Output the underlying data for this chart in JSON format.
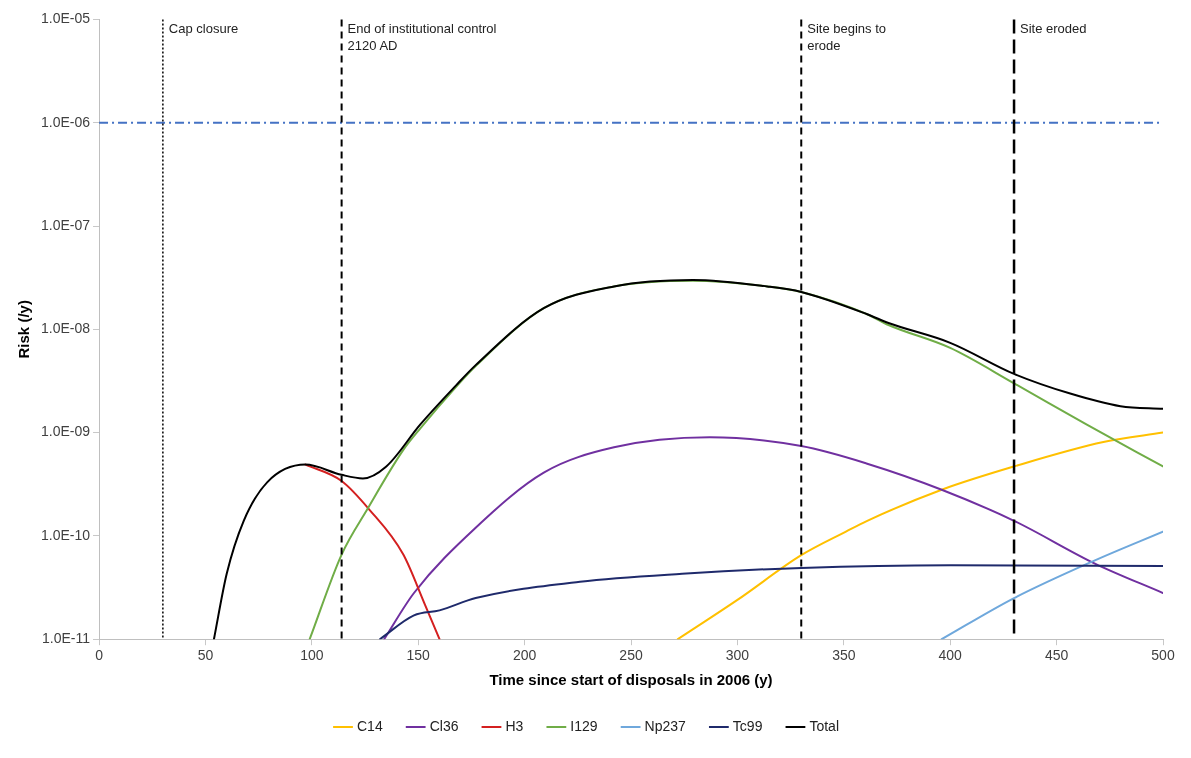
{
  "chart_data": {
    "type": "line",
    "xlabel": "Time since start of disposals in 2006 (y)",
    "ylabel": "Risk (/y)",
    "xlim": [
      0,
      500
    ],
    "xticks": [
      0,
      50,
      100,
      150,
      200,
      250,
      300,
      350,
      400,
      450,
      500
    ],
    "ylim": [
      1e-11,
      1e-05
    ],
    "log": "y",
    "yticks": [
      {
        "value": 1e-11,
        "label": "1.0E-11"
      },
      {
        "value": 1e-10,
        "label": "1.0E-10"
      },
      {
        "value": 1e-09,
        "label": "1.0E-09"
      },
      {
        "value": 1e-08,
        "label": "1.0E-08"
      },
      {
        "value": 1e-07,
        "label": "1.0E-07"
      },
      {
        "value": 1e-06,
        "label": "1.0E-06"
      },
      {
        "value": 1e-05,
        "label": "1.0E-05"
      }
    ],
    "grid": false,
    "legend": "bottom",
    "marker": "none",
    "line_style": "solid",
    "series": [
      {
        "name": "C14",
        "color": "#ffc000",
        "x": [
          272,
          300,
          330,
          351,
          361,
          396,
          430,
          472,
          500
        ],
        "values": [
          1e-11,
          2.4e-11,
          6.5e-11,
          1.1e-10,
          1.4e-10,
          2.8e-10,
          4.7e-10,
          8.1e-10,
          1e-09
        ]
      },
      {
        "name": "Cl36",
        "color": "#7030a0",
        "x": [
          134,
          148,
          177,
          209,
          242,
          287,
          330,
          361,
          396,
          430,
          468,
          500
        ],
        "values": [
          1e-11,
          2.8e-11,
          1.2e-10,
          4.1e-10,
          7.2e-10,
          9e-10,
          7.4e-10,
          5e-10,
          2.8e-10,
          1.4e-10,
          5.4e-11,
          2.8e-11
        ]
      },
      {
        "name": "H3",
        "color": "#d42020",
        "x": [
          97,
          114,
          127,
          143,
          153,
          160
        ],
        "values": [
          4.9e-10,
          3.4e-10,
          1.8e-10,
          6.6e-11,
          2.2e-11,
          1e-11
        ]
      },
      {
        "name": "I129",
        "color": "#70ad47",
        "x": [
          99,
          114,
          126,
          143,
          151,
          168,
          177,
          209,
          242,
          279,
          314,
          330,
          361,
          371,
          400,
          430,
          464,
          500
        ],
        "values": [
          1e-11,
          6.6e-11,
          1.8e-10,
          6.8e-10,
          1.1e-09,
          2.8e-09,
          4.4e-09,
          1.6e-08,
          2.6e-08,
          2.95e-08,
          2.6e-08,
          2.3e-08,
          1.4e-08,
          1.1e-08,
          6.6e-09,
          3e-09,
          1.2e-09,
          4.7e-10
        ]
      },
      {
        "name": "Np237",
        "color": "#6fa8dc",
        "x": [
          396,
          430,
          468,
          500
        ],
        "values": [
          1e-11,
          2.5e-11,
          5.8e-11,
          1.1e-10
        ]
      },
      {
        "name": "Tc99",
        "color": "#1f2a6b",
        "x": [
          132,
          148,
          160,
          177,
          226,
          274,
          330,
          400,
          500
        ],
        "values": [
          1e-11,
          1.7e-11,
          1.9e-11,
          2.5e-11,
          3.6e-11,
          4.3e-11,
          4.9e-11,
          5.2e-11,
          5.1e-11
        ]
      },
      {
        "name": "Total",
        "color": "#000000",
        "x": [
          54,
          60,
          68,
          79,
          97,
          114,
          124,
          135,
          151,
          168,
          177,
          209,
          242,
          279,
          314,
          330,
          361,
          371,
          400,
          430,
          456,
          480,
          500
        ],
        "values": [
          1e-11,
          4.3e-11,
          1.4e-10,
          3.3e-10,
          4.9e-10,
          3.9e-10,
          3.6e-10,
          4.7e-10,
          1.2e-09,
          2.9e-09,
          4.5e-09,
          1.6e-08,
          2.6e-08,
          3e-08,
          2.6e-08,
          2.3e-08,
          1.4e-08,
          1.15e-08,
          7.4e-09,
          3.7e-09,
          2.4e-09,
          1.8e-09,
          1.7e-09
        ]
      }
    ],
    "ref_lines": [
      {
        "axis": "y",
        "value": 1e-06,
        "color": "#4472c4",
        "line_style": "dashdot"
      },
      {
        "axis": "x",
        "value": 30,
        "label": "Cap closure",
        "color": "#000000",
        "line_style": "dotted"
      },
      {
        "axis": "x",
        "value": 114,
        "label": "End of institutional control\n2120 AD",
        "color": "#000000",
        "line_style": "dashed"
      },
      {
        "axis": "x",
        "value": 330,
        "label": "Site begins to\nerode",
        "color": "#000000",
        "line_style": "dashed"
      },
      {
        "axis": "x",
        "value": 430,
        "label": "Site eroded",
        "color": "#000000",
        "line_style": "longdashed"
      }
    ]
  }
}
